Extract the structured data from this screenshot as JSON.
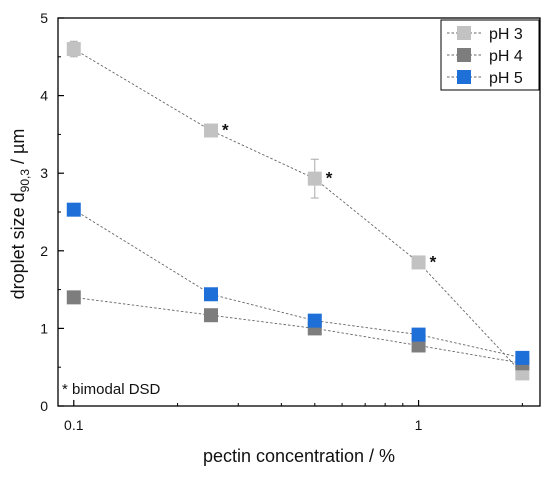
{
  "chart_data": {
    "type": "scatter",
    "xlabel": "pectin concentration / %",
    "ylabel_main": "droplet size d",
    "ylabel_sub": "90,3",
    "ylabel_unit": " / µm",
    "xscale": "log",
    "xlim": [
      0.09,
      2.25
    ],
    "ylim": [
      0,
      5
    ],
    "xticks": [
      0.1,
      1
    ],
    "xtick_labels": [
      "0.1",
      "1"
    ],
    "yticks": [
      0,
      1,
      2,
      3,
      4,
      5
    ],
    "ytick_labels": [
      "0",
      "1",
      "2",
      "3",
      "4",
      "5"
    ],
    "grid": false,
    "legend_position": "top-right",
    "x": [
      0.1,
      0.25,
      0.5,
      1,
      2
    ],
    "series": [
      {
        "name": "pH 3",
        "color": "#c2c2c2",
        "values": [
          4.6,
          3.55,
          2.93,
          1.85,
          0.42
        ],
        "errors": [
          0.1,
          0.04,
          0.25,
          0.05,
          0.03
        ],
        "marked": [
          false,
          true,
          true,
          true,
          false
        ]
      },
      {
        "name": "pH 4",
        "color": "#7d7d7d",
        "values": [
          1.4,
          1.17,
          1.0,
          0.78,
          0.55
        ],
        "errors": [
          0.03,
          0.03,
          0.03,
          0.03,
          0.03
        ],
        "marked": [
          false,
          false,
          false,
          false,
          false
        ]
      },
      {
        "name": "pH 5",
        "color": "#1f6fd9",
        "values": [
          2.53,
          1.44,
          1.1,
          0.92,
          0.62
        ],
        "errors": [
          0.03,
          0.03,
          0.03,
          0.03,
          0.03
        ],
        "marked": [
          false,
          false,
          false,
          false,
          false
        ]
      }
    ],
    "marker_symbol": "*",
    "annotation": "* bimodal DSD"
  }
}
